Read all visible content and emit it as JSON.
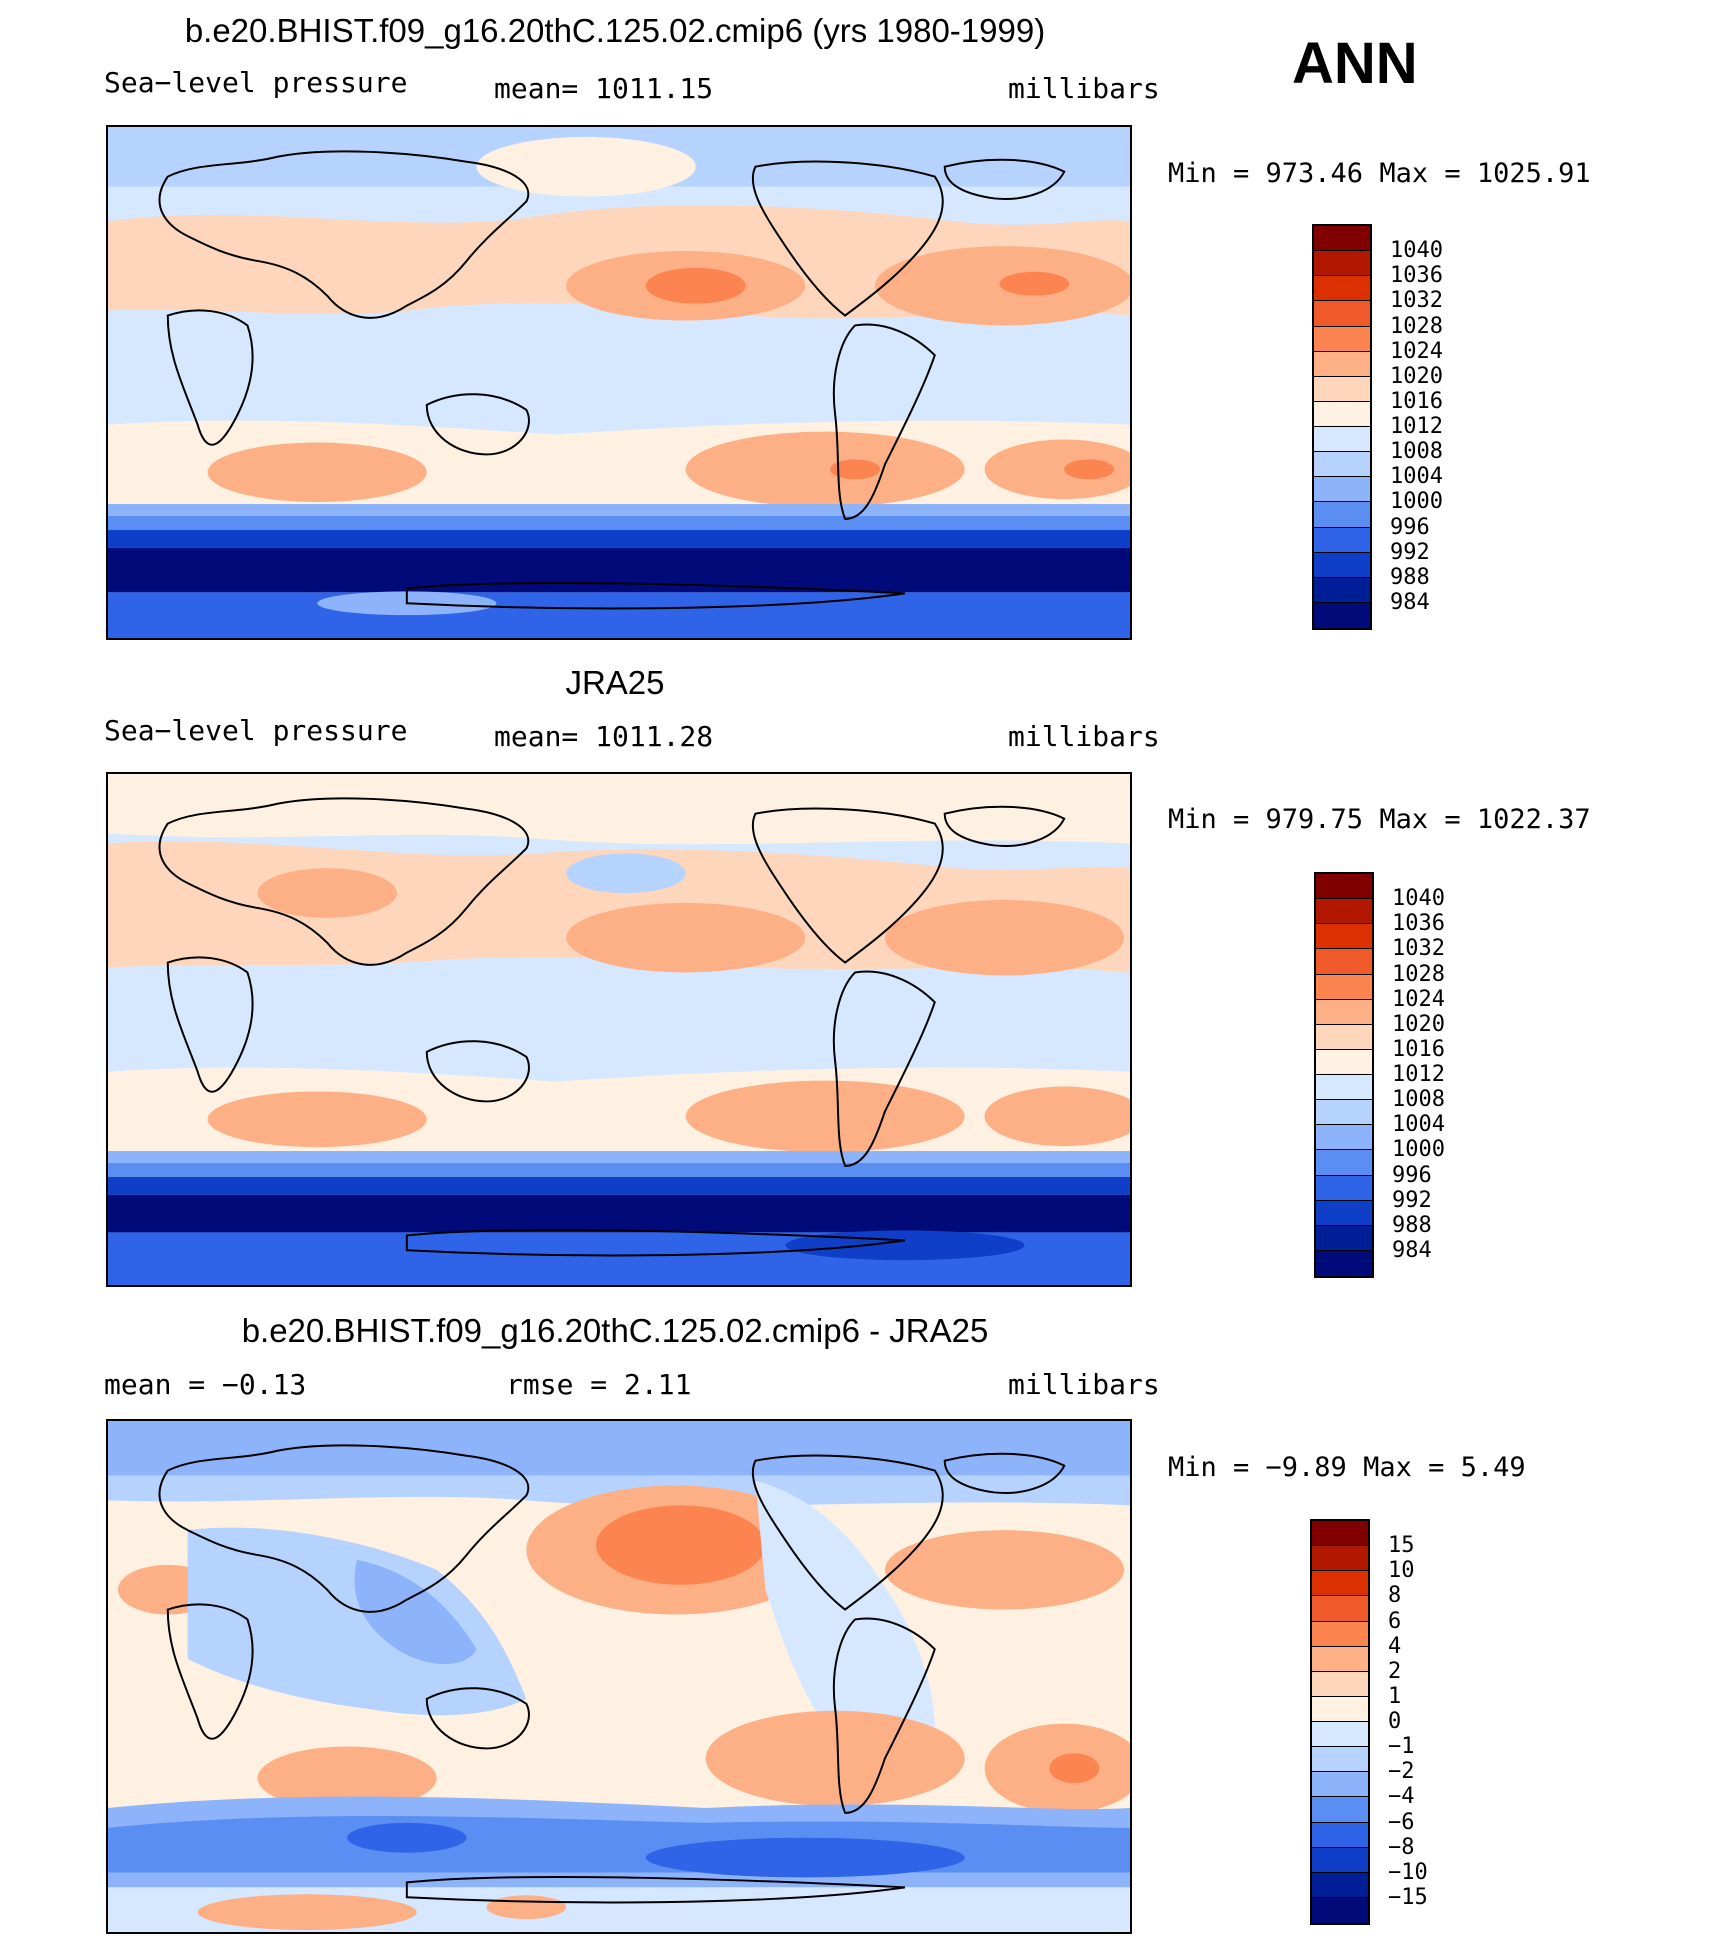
{
  "season": "ANN",
  "panels": [
    {
      "title": "b.e20.BHIST.f09_g16.20thC.125.02.cmip6 (yrs 1980-1999)",
      "left": "Sea−level pressure",
      "center": "mean=  1011.15",
      "right": "millibars",
      "minmax": "Min  =  973.46  Max  =  1025.91",
      "levels": [
        "1040",
        "1036",
        "1032",
        "1028",
        "1024",
        "1020",
        "1016",
        "1012",
        "1008",
        "1004",
        "1000",
        "996",
        "992",
        "988",
        "984"
      ],
      "colors": [
        "#800000",
        "#b21800",
        "#dc3000",
        "#f05a2a",
        "#fb8451",
        "#fdaf86",
        "#fed6bc",
        "#fff1e2",
        "#d6e8ff",
        "#b6d3ff",
        "#8db4fa",
        "#5b8ef2",
        "#2f63e8",
        "#0f3ec8",
        "#001e96",
        "#000a78"
      ]
    },
    {
      "title": "JRA25",
      "left": "Sea−level pressure",
      "center": "mean=  1011.28",
      "right": "millibars",
      "minmax": "Min  =  979.75  Max  =  1022.37",
      "levels": [
        "1040",
        "1036",
        "1032",
        "1028",
        "1024",
        "1020",
        "1016",
        "1012",
        "1008",
        "1004",
        "1000",
        "996",
        "992",
        "988",
        "984"
      ],
      "colors": [
        "#800000",
        "#b21800",
        "#dc3000",
        "#f05a2a",
        "#fb8451",
        "#fdaf86",
        "#fed6bc",
        "#fff1e2",
        "#d6e8ff",
        "#b6d3ff",
        "#8db4fa",
        "#5b8ef2",
        "#2f63e8",
        "#0f3ec8",
        "#001e96",
        "#000a78"
      ]
    },
    {
      "title": "b.e20.BHIST.f09_g16.20thC.125.02.cmip6 - JRA25",
      "left": "mean  =    −0.13",
      "center": "rmse  =     2.11",
      "right": "millibars",
      "minmax": "Min  =   −9.89  Max  =     5.49",
      "levels": [
        "15",
        "10",
        "8",
        "6",
        "4",
        "2",
        "1",
        "0",
        "−1",
        "−2",
        "−4",
        "−6",
        "−8",
        "−10",
        "−15"
      ],
      "colors": [
        "#800000",
        "#b21800",
        "#dc3000",
        "#f05a2a",
        "#fb8451",
        "#fdaf86",
        "#fed6bc",
        "#fff1e2",
        "#d6e8ff",
        "#b6d3ff",
        "#8db4fa",
        "#5b8ef2",
        "#2f63e8",
        "#0f3ec8",
        "#001e96",
        "#000a78"
      ]
    }
  ]
}
